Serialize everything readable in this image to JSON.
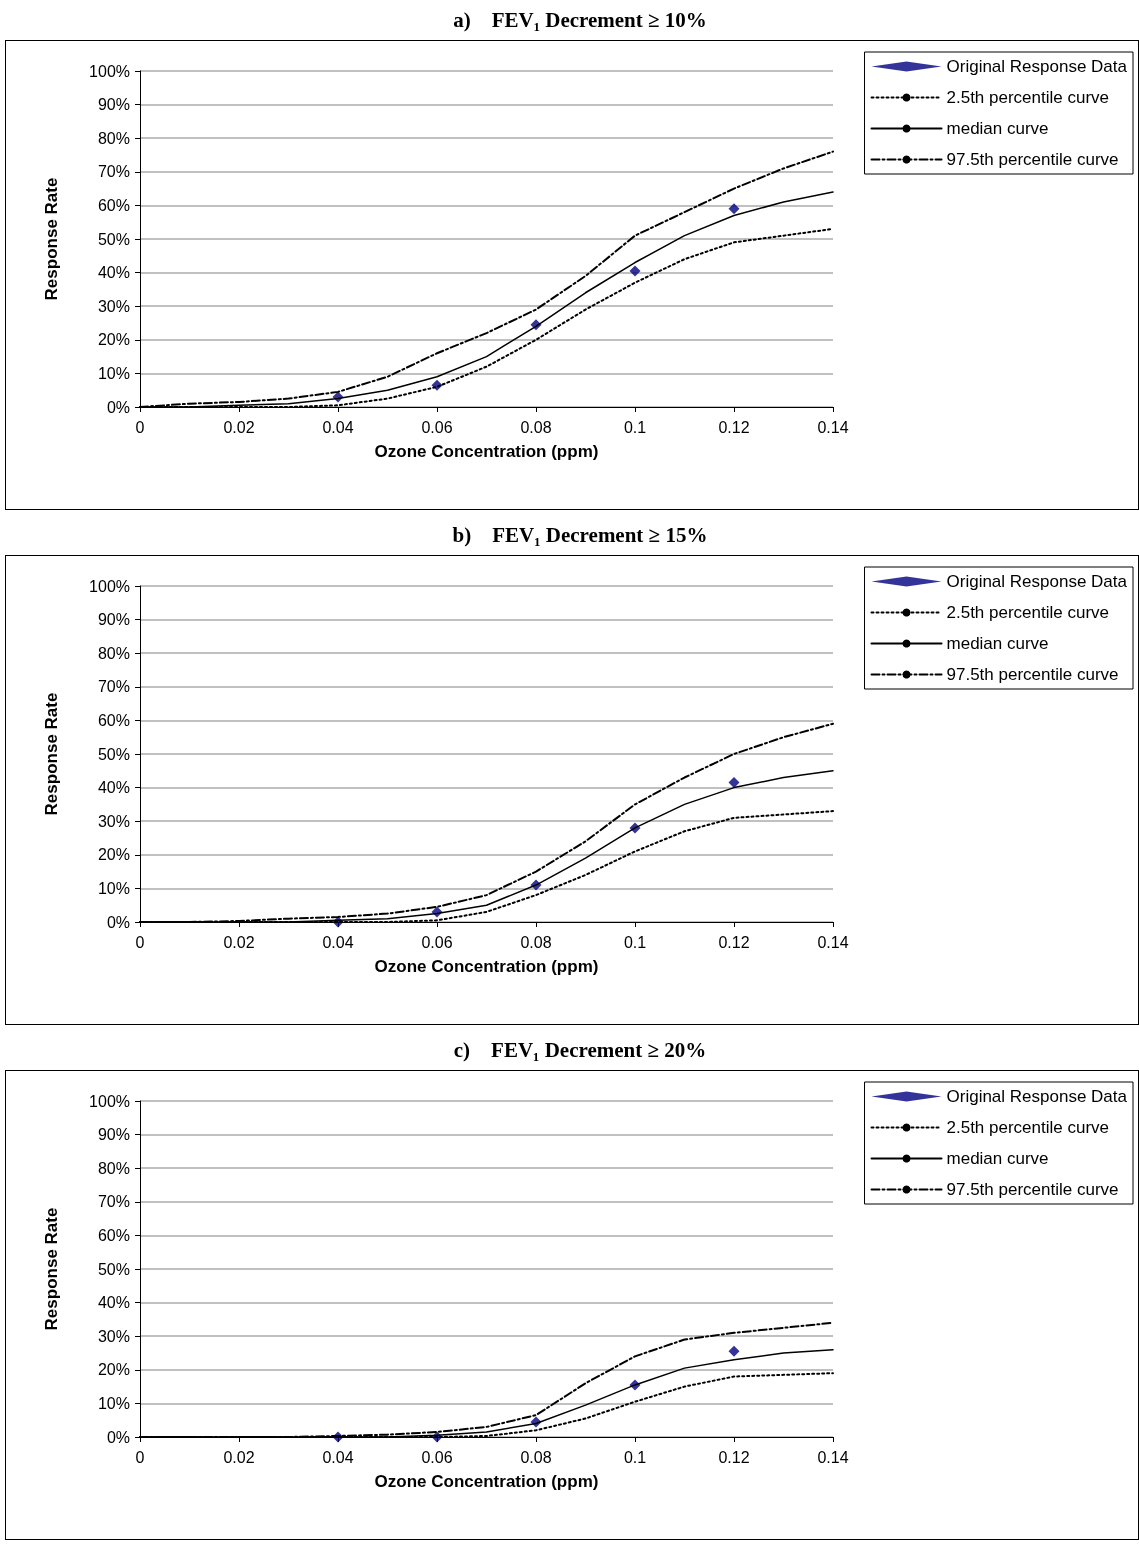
{
  "chart_data": [
    {
      "type": "line",
      "title": "a)    FEV₁ Decrement ≥ 10%",
      "xlabel": "Ozone Concentration (ppm)",
      "ylabel": "Response Rate",
      "x": [
        0,
        0.01,
        0.02,
        0.03,
        0.04,
        0.05,
        0.06,
        0.07,
        0.08,
        0.09,
        0.1,
        0.11,
        0.12,
        0.13,
        0.14
      ],
      "xlim": [
        0,
        0.14
      ],
      "xticks": [
        0,
        0.02,
        0.04,
        0.06,
        0.08,
        0.1,
        0.12,
        0.14
      ],
      "ylim": [
        0,
        100
      ],
      "yticks": [
        {
          "value": 0,
          "label": "0%"
        },
        {
          "value": 10,
          "label": "10%"
        },
        {
          "value": 20,
          "label": "20%"
        },
        {
          "value": 30,
          "label": "30%"
        },
        {
          "value": 40,
          "label": "40%"
        },
        {
          "value": 50,
          "label": "50%"
        },
        {
          "value": 60,
          "label": "60%"
        },
        {
          "value": 70,
          "label": "70%"
        },
        {
          "value": 80,
          "label": "80%"
        },
        {
          "value": 90,
          "label": "90%"
        },
        {
          "value": 100,
          "label": "100%"
        }
      ],
      "grid": "y",
      "legend": "top right",
      "series": [
        {
          "name": "Original Response Data",
          "type": "scatter",
          "marker": "diamond",
          "color": "#000080",
          "x": [
            0.04,
            0.06,
            0.08,
            0.1,
            0.12
          ],
          "values": [
            3,
            6.5,
            24.5,
            40.5,
            59
          ]
        },
        {
          "name": "2.5th percentile curve",
          "color": "#000000",
          "line_style": "dotted",
          "marker": "none",
          "values": [
            0,
            0,
            0,
            0,
            0.5,
            2.5,
            6,
            12,
            20,
            29,
            37,
            44,
            49,
            51,
            53
          ]
        },
        {
          "name": "median curve",
          "color": "#000000",
          "line_style": "solid",
          "marker": "none",
          "values": [
            0,
            0,
            0.5,
            1,
            2.5,
            5,
            9,
            15,
            24,
            34,
            43,
            51,
            57,
            61,
            64
          ]
        },
        {
          "name": "97.5th percentile curve",
          "color": "#000000",
          "line_style": "dashed",
          "marker": "none",
          "values": [
            0,
            1,
            1.5,
            2.5,
            4.5,
            9,
            16,
            22,
            29,
            39,
            51,
            58,
            65,
            71,
            76
          ]
        }
      ]
    },
    {
      "type": "line",
      "title": "b)    FEV₁ Decrement ≥ 15%",
      "xlabel": "Ozone Concentration (ppm)",
      "ylabel": "Response Rate",
      "x": [
        0,
        0.01,
        0.02,
        0.03,
        0.04,
        0.05,
        0.06,
        0.07,
        0.08,
        0.09,
        0.1,
        0.11,
        0.12,
        0.13,
        0.14
      ],
      "xlim": [
        0,
        0.14
      ],
      "xticks": [
        0,
        0.02,
        0.04,
        0.06,
        0.08,
        0.1,
        0.12,
        0.14
      ],
      "ylim": [
        0,
        100
      ],
      "yticks": [
        {
          "value": 0,
          "label": "0%"
        },
        {
          "value": 10,
          "label": "10%"
        },
        {
          "value": 20,
          "label": "20%"
        },
        {
          "value": 30,
          "label": "30%"
        },
        {
          "value": 40,
          "label": "40%"
        },
        {
          "value": 50,
          "label": "50%"
        },
        {
          "value": 60,
          "label": "60%"
        },
        {
          "value": 70,
          "label": "70%"
        },
        {
          "value": 80,
          "label": "80%"
        },
        {
          "value": 90,
          "label": "90%"
        },
        {
          "value": 100,
          "label": "100%"
        }
      ],
      "grid": "y",
      "legend": "top right",
      "series": [
        {
          "name": "Original Response Data",
          "type": "scatter",
          "marker": "diamond",
          "color": "#000080",
          "x": [
            0.04,
            0.06,
            0.08,
            0.1,
            0.12
          ],
          "values": [
            0,
            3,
            11,
            28,
            41.5
          ]
        },
        {
          "name": "2.5th percentile curve",
          "color": "#000000",
          "line_style": "dotted",
          "marker": "none",
          "values": [
            0,
            0,
            0,
            0,
            0,
            0,
            0.5,
            3,
            8,
            14,
            21,
            27,
            31,
            32,
            33
          ]
        },
        {
          "name": "median curve",
          "color": "#000000",
          "line_style": "solid",
          "marker": "none",
          "values": [
            0,
            0,
            0,
            0,
            0.5,
            1,
            2.5,
            5,
            11,
            19,
            28,
            35,
            40,
            43,
            45
          ]
        },
        {
          "name": "97.5th percentile curve",
          "color": "#000000",
          "line_style": "dashed",
          "marker": "none",
          "values": [
            0,
            0,
            0.3,
            1,
            1.5,
            2.5,
            4.5,
            8,
            15,
            24,
            35,
            43,
            50,
            55,
            59
          ]
        }
      ]
    },
    {
      "type": "line",
      "title": "c)    FEV₁ Decrement ≥ 20%",
      "xlabel": "Ozone Concentration (ppm)",
      "ylabel": "Response Rate",
      "x": [
        0,
        0.01,
        0.02,
        0.03,
        0.04,
        0.05,
        0.06,
        0.07,
        0.08,
        0.09,
        0.1,
        0.11,
        0.12,
        0.13,
        0.14
      ],
      "xlim": [
        0,
        0.14
      ],
      "xticks": [
        0,
        0.02,
        0.04,
        0.06,
        0.08,
        0.1,
        0.12,
        0.14
      ],
      "ylim": [
        0,
        100
      ],
      "yticks": [
        {
          "value": 0,
          "label": "0%"
        },
        {
          "value": 10,
          "label": "10%"
        },
        {
          "value": 20,
          "label": "20%"
        },
        {
          "value": 30,
          "label": "30%"
        },
        {
          "value": 40,
          "label": "40%"
        },
        {
          "value": 50,
          "label": "50%"
        },
        {
          "value": 60,
          "label": "60%"
        },
        {
          "value": 70,
          "label": "70%"
        },
        {
          "value": 80,
          "label": "80%"
        },
        {
          "value": 90,
          "label": "90%"
        },
        {
          "value": 100,
          "label": "100%"
        }
      ],
      "grid": "y",
      "legend": "top right",
      "series": [
        {
          "name": "Original Response Data",
          "type": "scatter",
          "marker": "diamond",
          "color": "#000080",
          "x": [
            0.04,
            0.06,
            0.08,
            0.1,
            0.12
          ],
          "values": [
            0,
            0,
            4.5,
            15.5,
            25.5
          ]
        },
        {
          "name": "2.5th percentile curve",
          "color": "#000000",
          "line_style": "dotted",
          "marker": "none",
          "values": [
            0,
            0,
            0,
            0,
            0,
            0,
            0,
            0.3,
            2,
            5.5,
            10.5,
            15,
            18,
            18.5,
            19
          ]
        },
        {
          "name": "median curve",
          "color": "#000000",
          "line_style": "solid",
          "marker": "none",
          "values": [
            0,
            0,
            0,
            0,
            0,
            0,
            0.5,
            1.5,
            4,
            9.5,
            15.5,
            20.5,
            23,
            25,
            26
          ]
        },
        {
          "name": "97.5th percentile curve",
          "color": "#000000",
          "line_style": "dashed",
          "marker": "none",
          "values": [
            0,
            0,
            0,
            0,
            0.3,
            0.7,
            1.5,
            3,
            6.5,
            16,
            24,
            29,
            31,
            32.5,
            34
          ]
        }
      ]
    }
  ]
}
